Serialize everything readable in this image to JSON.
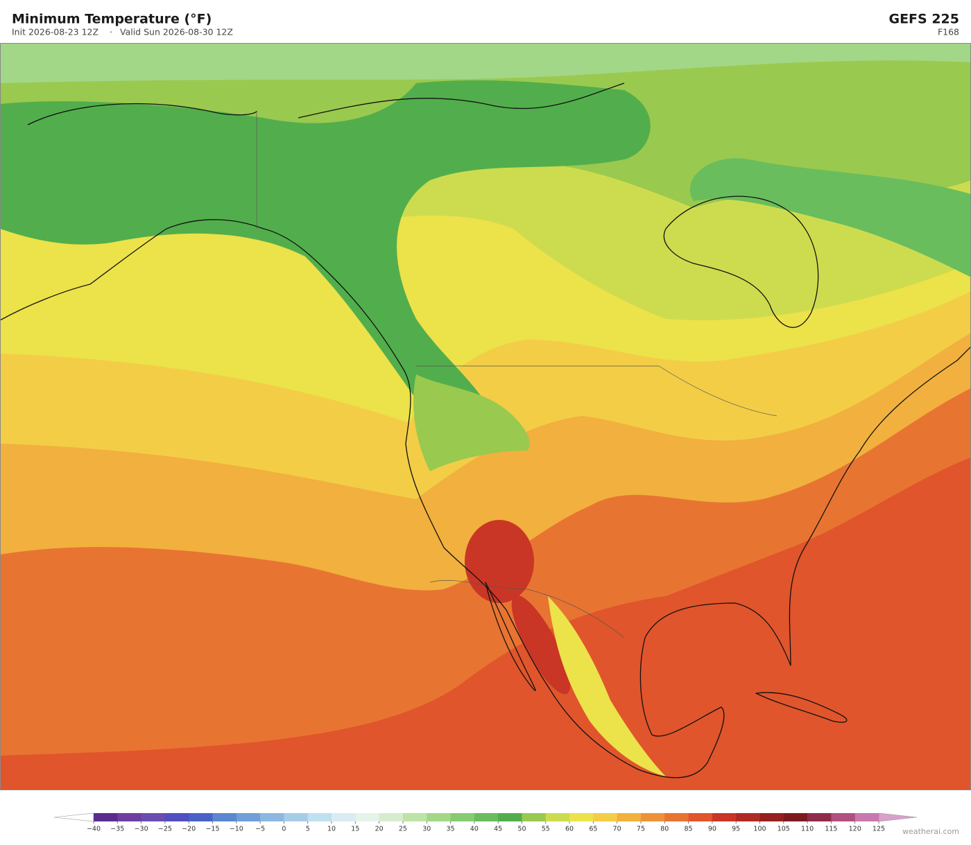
{
  "header": {
    "title": "Minimum Temperature  (°F)",
    "init": "Init 2026-08-23 12Z",
    "separator": "·",
    "valid": "Valid Sun 2026-08-30 12Z",
    "model": "GEFS  225",
    "forecast_hour": "F168"
  },
  "colorbar": {
    "ticks": [
      {
        "value": -40,
        "label": "−40"
      },
      {
        "value": -35,
        "label": "−35"
      },
      {
        "value": -30,
        "label": "−30"
      },
      {
        "value": -25,
        "label": "−25"
      },
      {
        "value": -20,
        "label": "−20"
      },
      {
        "value": -15,
        "label": "−15"
      },
      {
        "value": -10,
        "label": "−10"
      },
      {
        "value": -5,
        "label": "−5"
      },
      0,
      5,
      10,
      15,
      20,
      25,
      30,
      35,
      40,
      45,
      50,
      55,
      60,
      65,
      70,
      75,
      80,
      85,
      90,
      95,
      100,
      105,
      110,
      115,
      120,
      125
    ],
    "colors": [
      "#5b2d8e",
      "#6e3fa0",
      "#6a4db0",
      "#4f4fc0",
      "#4a62c8",
      "#5b86d0",
      "#6f9fd8",
      "#8cb8e0",
      "#a6cde8",
      "#bfe0ef",
      "#d8ecf2",
      "#e6f3ea",
      "#d6ecce",
      "#bde3a6",
      "#a2d788",
      "#86cb70",
      "#69bd5c",
      "#52ae4c",
      "#9ac94f",
      "#cddc4e",
      "#ece24a",
      "#f4cd46",
      "#f2b03e",
      "#ee9238",
      "#e87432",
      "#e0552b",
      "#c93626",
      "#b02a24",
      "#962020",
      "#7d1a20",
      "#8f2c4a",
      "#b0507e",
      "#c878ae"
    ],
    "extend_low_color": "#ffffff",
    "extend_high_color": "#d9a0cc"
  },
  "footer": {
    "credit": "weatherai.com"
  }
}
